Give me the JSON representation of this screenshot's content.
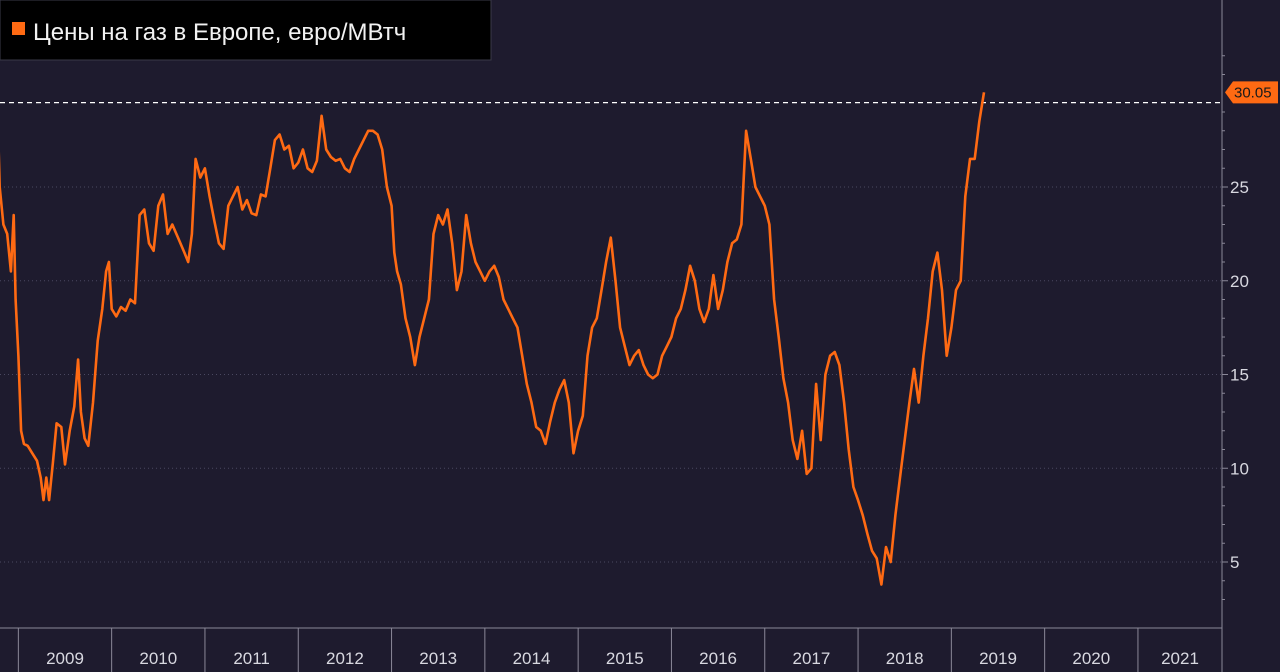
{
  "chart_data": {
    "type": "line",
    "title": "Цены на газ в Европе, евро/МВтч",
    "legend": {
      "position": "top-left",
      "entries": [
        "Цены на газ в Европе, евро/МВтч"
      ]
    },
    "series_color": "#ff6a13",
    "y_axis": {
      "position": "right",
      "ticks": [
        5,
        10,
        15,
        20,
        25
      ],
      "range": [
        2,
        33
      ],
      "grid": true
    },
    "x_axis": {
      "labels": [
        "2009",
        "2010",
        "2011",
        "2012",
        "2013",
        "2014",
        "2015",
        "2016",
        "2017",
        "2018",
        "2019",
        "2020",
        "2021"
      ],
      "range": [
        2008.75,
        2021.55
      ]
    },
    "last_value": {
      "value": 30.05,
      "label": "30.05"
    },
    "reference_line": {
      "y": 29.5,
      "style": "dashed"
    },
    "series": [
      {
        "values": [
          [
            2008.76,
            32.0
          ],
          [
            2008.8,
            25.0
          ],
          [
            2008.84,
            23.0
          ],
          [
            2008.88,
            22.5
          ],
          [
            2008.92,
            20.5
          ],
          [
            2008.95,
            23.5
          ],
          [
            2008.97,
            19.0
          ],
          [
            2009.0,
            16.0
          ],
          [
            2009.03,
            12.0
          ],
          [
            2009.06,
            11.3
          ],
          [
            2009.1,
            11.2
          ],
          [
            2009.15,
            10.8
          ],
          [
            2009.2,
            10.4
          ],
          [
            2009.24,
            9.5
          ],
          [
            2009.27,
            8.3
          ],
          [
            2009.3,
            9.5
          ],
          [
            2009.33,
            8.3
          ],
          [
            2009.37,
            10.3
          ],
          [
            2009.41,
            12.4
          ],
          [
            2009.46,
            12.2
          ],
          [
            2009.5,
            10.2
          ],
          [
            2009.55,
            12.0
          ],
          [
            2009.6,
            13.3
          ],
          [
            2009.64,
            15.8
          ],
          [
            2009.67,
            13.0
          ],
          [
            2009.71,
            11.6
          ],
          [
            2009.75,
            11.2
          ],
          [
            2009.8,
            13.5
          ],
          [
            2009.85,
            16.8
          ],
          [
            2009.9,
            18.5
          ],
          [
            2009.94,
            20.5
          ],
          [
            2009.97,
            21.0
          ],
          [
            2010.0,
            18.5
          ],
          [
            2010.05,
            18.1
          ],
          [
            2010.1,
            18.6
          ],
          [
            2010.15,
            18.4
          ],
          [
            2010.2,
            19.0
          ],
          [
            2010.25,
            18.8
          ],
          [
            2010.3,
            23.5
          ],
          [
            2010.35,
            23.8
          ],
          [
            2010.4,
            22.0
          ],
          [
            2010.45,
            21.6
          ],
          [
            2010.5,
            24.0
          ],
          [
            2010.55,
            24.6
          ],
          [
            2010.6,
            22.5
          ],
          [
            2010.65,
            23.0
          ],
          [
            2010.72,
            22.2
          ],
          [
            2010.78,
            21.5
          ],
          [
            2010.82,
            21.0
          ],
          [
            2010.86,
            22.5
          ],
          [
            2010.9,
            26.5
          ],
          [
            2010.95,
            25.5
          ],
          [
            2011.0,
            26.0
          ],
          [
            2011.05,
            24.5
          ],
          [
            2011.1,
            23.2
          ],
          [
            2011.15,
            22.0
          ],
          [
            2011.2,
            21.7
          ],
          [
            2011.25,
            24.0
          ],
          [
            2011.3,
            24.5
          ],
          [
            2011.35,
            25.0
          ],
          [
            2011.4,
            23.8
          ],
          [
            2011.45,
            24.3
          ],
          [
            2011.5,
            23.6
          ],
          [
            2011.55,
            23.5
          ],
          [
            2011.6,
            24.6
          ],
          [
            2011.65,
            24.5
          ],
          [
            2011.7,
            26.0
          ],
          [
            2011.75,
            27.5
          ],
          [
            2011.8,
            27.8
          ],
          [
            2011.85,
            27.0
          ],
          [
            2011.9,
            27.2
          ],
          [
            2011.95,
            26.0
          ],
          [
            2012.0,
            26.3
          ],
          [
            2012.05,
            27.0
          ],
          [
            2012.1,
            26.0
          ],
          [
            2012.15,
            25.8
          ],
          [
            2012.2,
            26.4
          ],
          [
            2012.25,
            28.8
          ],
          [
            2012.3,
            27.0
          ],
          [
            2012.35,
            26.6
          ],
          [
            2012.4,
            26.4
          ],
          [
            2012.45,
            26.5
          ],
          [
            2012.5,
            26.0
          ],
          [
            2012.55,
            25.8
          ],
          [
            2012.6,
            26.5
          ],
          [
            2012.65,
            27.0
          ],
          [
            2012.7,
            27.5
          ],
          [
            2012.75,
            28.0
          ],
          [
            2012.8,
            28.0
          ],
          [
            2012.85,
            27.8
          ],
          [
            2012.9,
            27.0
          ],
          [
            2012.95,
            25.0
          ],
          [
            2013.0,
            24.0
          ],
          [
            2013.03,
            21.5
          ],
          [
            2013.06,
            20.5
          ],
          [
            2013.1,
            19.8
          ],
          [
            2013.15,
            18.0
          ],
          [
            2013.2,
            17.0
          ],
          [
            2013.25,
            15.5
          ],
          [
            2013.3,
            17.0
          ],
          [
            2013.35,
            18.0
          ],
          [
            2013.4,
            19.0
          ],
          [
            2013.45,
            22.5
          ],
          [
            2013.5,
            23.5
          ],
          [
            2013.55,
            23.0
          ],
          [
            2013.6,
            23.8
          ],
          [
            2013.65,
            22.0
          ],
          [
            2013.7,
            19.5
          ],
          [
            2013.75,
            20.5
          ],
          [
            2013.8,
            23.5
          ],
          [
            2013.85,
            22.0
          ],
          [
            2013.9,
            21.0
          ],
          [
            2013.95,
            20.5
          ],
          [
            2014.0,
            20.0
          ],
          [
            2014.05,
            20.5
          ],
          [
            2014.1,
            20.8
          ],
          [
            2014.15,
            20.2
          ],
          [
            2014.2,
            19.0
          ],
          [
            2014.25,
            18.5
          ],
          [
            2014.3,
            18.0
          ],
          [
            2014.35,
            17.5
          ],
          [
            2014.4,
            16.0
          ],
          [
            2014.45,
            14.5
          ],
          [
            2014.5,
            13.5
          ],
          [
            2014.55,
            12.2
          ],
          [
            2014.6,
            12.0
          ],
          [
            2014.65,
            11.3
          ],
          [
            2014.7,
            12.5
          ],
          [
            2014.75,
            13.5
          ],
          [
            2014.8,
            14.2
          ],
          [
            2014.85,
            14.7
          ],
          [
            2014.9,
            13.5
          ],
          [
            2014.95,
            10.8
          ],
          [
            2015.0,
            12.0
          ],
          [
            2015.05,
            12.8
          ],
          [
            2015.1,
            16.0
          ],
          [
            2015.15,
            17.5
          ],
          [
            2015.2,
            18.0
          ],
          [
            2015.25,
            19.5
          ],
          [
            2015.3,
            21.0
          ],
          [
            2015.35,
            22.3
          ],
          [
            2015.4,
            20.0
          ],
          [
            2015.45,
            17.5
          ],
          [
            2015.5,
            16.5
          ],
          [
            2015.55,
            15.5
          ],
          [
            2015.6,
            16.0
          ],
          [
            2015.65,
            16.3
          ],
          [
            2015.7,
            15.5
          ],
          [
            2015.75,
            15.0
          ],
          [
            2015.8,
            14.8
          ],
          [
            2015.85,
            15.0
          ],
          [
            2015.9,
            16.0
          ],
          [
            2015.95,
            16.5
          ],
          [
            2016.0,
            17.0
          ],
          [
            2016.05,
            18.0
          ],
          [
            2016.1,
            18.5
          ],
          [
            2016.15,
            19.5
          ],
          [
            2016.2,
            20.8
          ],
          [
            2016.25,
            20.0
          ],
          [
            2016.3,
            18.5
          ],
          [
            2016.35,
            17.8
          ],
          [
            2016.4,
            18.5
          ],
          [
            2016.45,
            20.3
          ],
          [
            2016.5,
            18.5
          ],
          [
            2016.55,
            19.5
          ],
          [
            2016.6,
            21.0
          ],
          [
            2016.65,
            22.0
          ],
          [
            2016.7,
            22.2
          ],
          [
            2016.75,
            23.0
          ],
          [
            2016.8,
            28.0
          ],
          [
            2016.85,
            26.5
          ],
          [
            2016.9,
            25.0
          ],
          [
            2016.95,
            24.5
          ],
          [
            2017.0,
            24.0
          ],
          [
            2017.05,
            23.0
          ],
          [
            2017.1,
            19.0
          ],
          [
            2017.15,
            17.0
          ],
          [
            2017.2,
            14.8
          ],
          [
            2017.25,
            13.5
          ],
          [
            2017.3,
            11.5
          ],
          [
            2017.35,
            10.5
          ],
          [
            2017.4,
            12.0
          ],
          [
            2017.45,
            9.7
          ],
          [
            2017.5,
            10.0
          ],
          [
            2017.55,
            14.5
          ],
          [
            2017.6,
            11.5
          ],
          [
            2017.65,
            15.0
          ],
          [
            2017.7,
            16.0
          ],
          [
            2017.75,
            16.2
          ],
          [
            2017.8,
            15.5
          ],
          [
            2017.85,
            13.5
          ],
          [
            2017.9,
            11.0
          ],
          [
            2017.95,
            9.0
          ],
          [
            2018.0,
            8.3
          ],
          [
            2018.05,
            7.5
          ],
          [
            2018.1,
            6.5
          ],
          [
            2018.15,
            5.6
          ],
          [
            2018.2,
            5.2
          ],
          [
            2018.25,
            3.8
          ],
          [
            2018.3,
            5.8
          ],
          [
            2018.35,
            5.0
          ],
          [
            2018.4,
            7.5
          ],
          [
            2018.45,
            9.5
          ],
          [
            2018.5,
            11.5
          ],
          [
            2018.55,
            13.5
          ],
          [
            2018.6,
            15.3
          ],
          [
            2018.65,
            13.5
          ],
          [
            2018.7,
            16.0
          ],
          [
            2018.75,
            18.0
          ],
          [
            2018.8,
            20.5
          ],
          [
            2018.85,
            21.5
          ],
          [
            2018.9,
            19.5
          ],
          [
            2018.95,
            16.0
          ],
          [
            2019.0,
            17.5
          ],
          [
            2019.05,
            19.5
          ],
          [
            2019.1,
            20.0
          ],
          [
            2019.15,
            24.5
          ],
          [
            2019.2,
            26.5
          ],
          [
            2019.25,
            26.5
          ],
          [
            2019.3,
            28.5
          ],
          [
            2019.35,
            30.05
          ]
        ]
      }
    ]
  }
}
